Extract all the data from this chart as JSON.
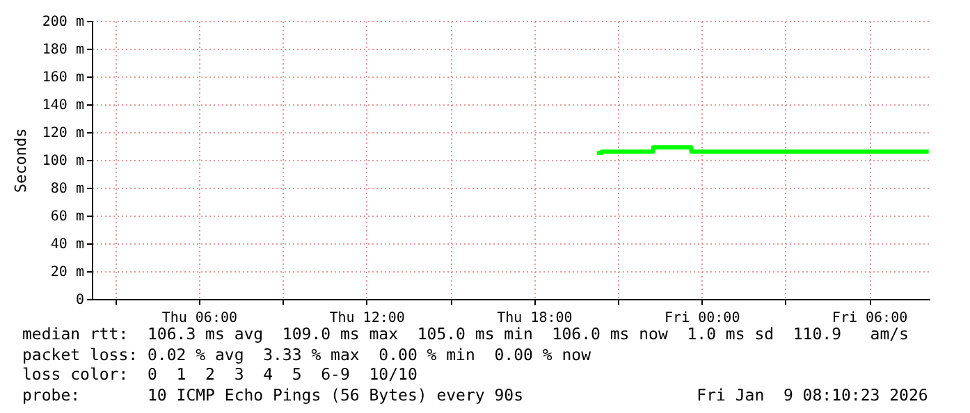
{
  "chart_data": {
    "type": "step",
    "ylabel": "Seconds",
    "x": [
      "2026-01-08T20:15",
      "2026-01-08T20:26",
      "2026-01-08T22:16",
      "2026-01-08T23:38",
      "2026-01-09T08:08"
    ],
    "series": [
      {
        "color": "#00ff00",
        "values": [
          105,
          106,
          109,
          106,
          106
        ]
      }
    ],
    "xlim": [
      "2026-01-08T02:10",
      "2026-01-09T08:10"
    ],
    "xticks": [
      {
        "value": "2026-01-08T03:00",
        "label": null
      },
      {
        "value": "2026-01-08T06:00",
        "label": "Thu 06:00"
      },
      {
        "value": "2026-01-08T09:00",
        "label": null
      },
      {
        "value": "2026-01-08T12:00",
        "label": "Thu 12:00"
      },
      {
        "value": "2026-01-08T15:00",
        "label": null
      },
      {
        "value": "2026-01-08T18:00",
        "label": "Thu 18:00"
      },
      {
        "value": "2026-01-08T21:00",
        "label": null
      },
      {
        "value": "2026-01-09T00:00",
        "label": "Fri 00:00"
      },
      {
        "value": "2026-01-09T03:00",
        "label": null
      },
      {
        "value": "2026-01-09T06:00",
        "label": "Fri 06:00"
      }
    ],
    "ylim": [
      0,
      200
    ],
    "yticks": [
      0,
      {
        "value": 20,
        "label": "20 m"
      },
      {
        "value": 40,
        "label": "40 m"
      },
      {
        "value": 60,
        "label": "60 m"
      },
      {
        "value": 80,
        "label": "80 m"
      },
      {
        "value": 100,
        "label": "100 m"
      },
      {
        "value": 120,
        "label": "120 m"
      },
      {
        "value": 140,
        "label": "140 m"
      },
      {
        "value": 160,
        "label": "160 m"
      },
      {
        "value": 180,
        "label": "180 m"
      },
      {
        "value": 200,
        "label": "200 m"
      }
    ],
    "grid": true,
    "annotations": [
      "median rtt:  106.3 ms avg  109.0 ms max  105.0 ms min  106.0 ms now  1.0 ms sd  110.9   am/s",
      "packet loss: 0.02 % avg  3.33 % max  0.00 % min  0.00 % now",
      "loss color:  0  1  2  3  4  5  6-9  10/10",
      "probe:       10 ICMP Echo Pings (56 Bytes) every 90s                  Fri Jan  9 08:10:23 2026"
    ]
  }
}
